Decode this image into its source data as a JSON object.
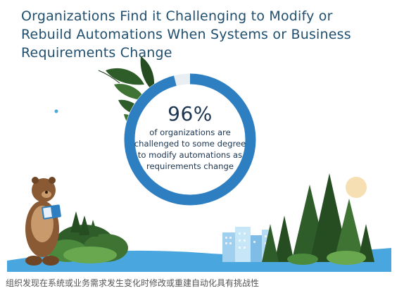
{
  "title": "Organizations Find it Challenging to Modify or Rebuild Automations When Systems or Business Requirements Change",
  "chart_data": {
    "type": "pie",
    "style": "donut",
    "value_percent": 96,
    "center_label": "96%",
    "center_text": "of organizations are challenged to some degree to modify automations as requirements change",
    "colors": {
      "filled": "#2d7fc1",
      "remainder": "#e9eef2"
    }
  },
  "caption": "组织发现在系统或业务需求发生变化时修改或重建自动化具有挑战性",
  "illustration": {
    "icons": [
      "bear-reading-icon",
      "leaves-icon",
      "pine-trees-icon",
      "city-buildings-icon",
      "sun-icon",
      "bushes-icon"
    ],
    "colors": {
      "ground": "#4aa6de",
      "leaves": "#2f5d2a",
      "sun": "#f6dfb2",
      "bear": "#8a5a34"
    }
  }
}
